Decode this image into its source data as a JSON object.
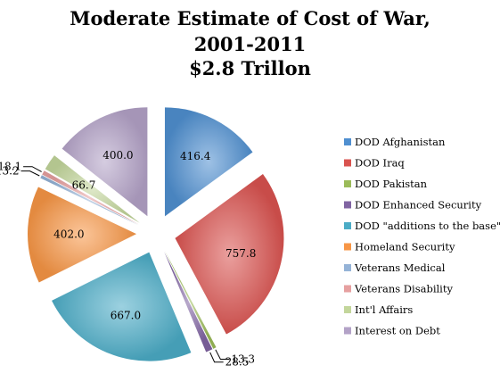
{
  "chart_data": {
    "type": "pie",
    "title": "Moderate Estimate of Cost of War, 2001-2011 $2.8 Trillon",
    "title_lines": [
      "Moderate Estimate of Cost of War,",
      "2001-2011",
      "$2.8 Trillon"
    ],
    "exploded": true,
    "start_angle": "12 o'clock, clockwise",
    "legend_position": "right",
    "slices": [
      {
        "label": "DOD Afghanistan",
        "value": 416.4,
        "value_label": "416.4",
        "color": "#4f8fd0"
      },
      {
        "label": "DOD Iraq",
        "value": 757.8,
        "value_label": "757.8",
        "color": "#d9534f"
      },
      {
        "label": "DOD Pakistan",
        "value": 13.3,
        "value_label": "13.3",
        "color": "#9bbb59"
      },
      {
        "label": "DOD Enhanced Security",
        "value": 28.5,
        "value_label": "28.5",
        "color": "#8064a2"
      },
      {
        "label": "DOD \"additions to the base\"",
        "value": 667.0,
        "value_label": "667.0",
        "color": "#4bacc6"
      },
      {
        "label": "Homeland Security",
        "value": 402.0,
        "value_label": "402.0",
        "color": "#f79646"
      },
      {
        "label": "Veterans Medical",
        "value": 13.2,
        "value_label": "13.2",
        "color": "#95b3d7"
      },
      {
        "label": "Veterans Disability",
        "value": 18.1,
        "value_label": "18.1",
        "color": "#e6a0a0"
      },
      {
        "label": "Int'l Affairs",
        "value": 66.7,
        "value_label": "66.7",
        "color": "#c3d69b"
      },
      {
        "label": "Interest on Debt",
        "value": 400.0,
        "value_label": "400.0",
        "color": "#b3a2c7"
      }
    ]
  }
}
